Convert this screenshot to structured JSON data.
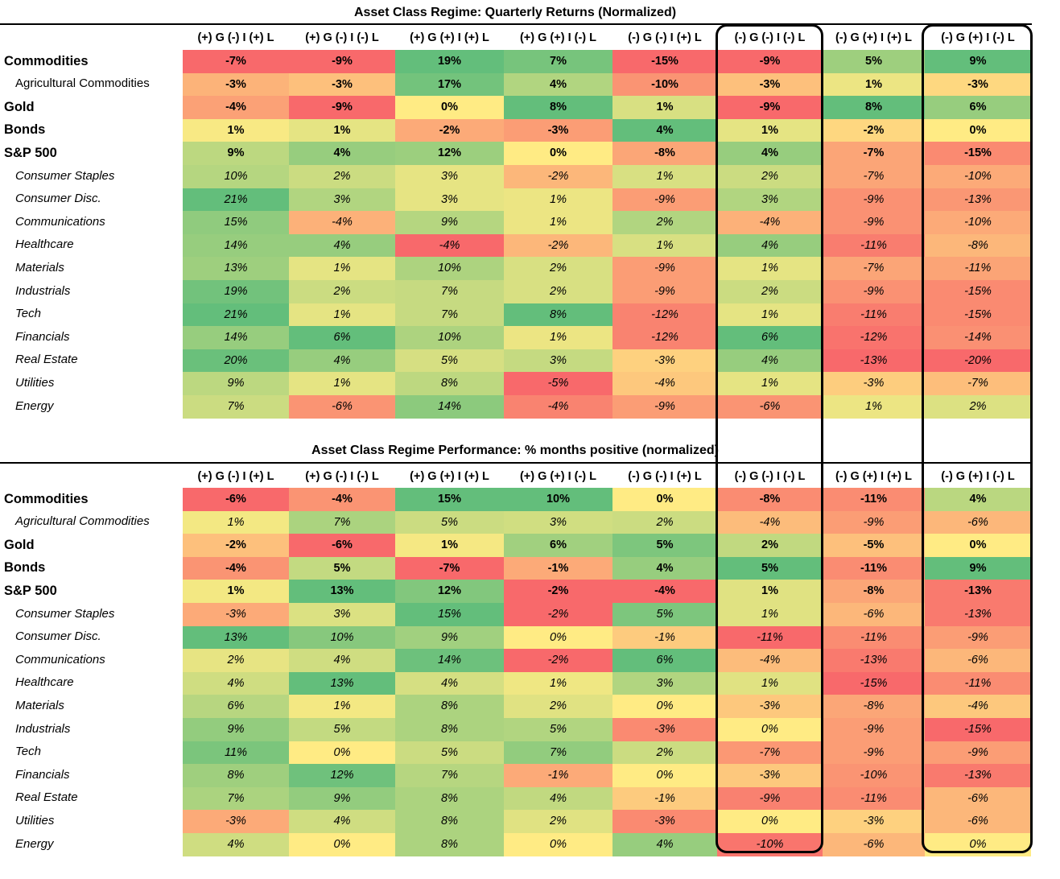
{
  "colors": {
    "green": "#63be7b",
    "yellow": "#ffeb84",
    "red": "#f8696b"
  },
  "chart_data": [
    {
      "type": "heatmap",
      "title": "Asset Class Regime: Quarterly Returns (Normalized)",
      "columns": [
        "(+) G (-) I (+) L",
        "(+) G (-) I (-) L",
        "(+) G (+) I (+) L",
        "(+) G (+) I (-) L",
        "(-) G (-) I (+) L",
        "(-) G (-) I (-) L",
        "(-) G (+) I (+) L",
        "(-) G (+) I (-) L"
      ],
      "rows": [
        {
          "label": "Commodities",
          "style": "main",
          "values": [
            -7,
            -9,
            19,
            7,
            -15,
            -9,
            5,
            9
          ]
        },
        {
          "label": "Agricultural Commodities",
          "style": "sub-plain",
          "values": [
            -3,
            -3,
            17,
            4,
            -10,
            -3,
            1,
            -3
          ]
        },
        {
          "label": "Gold",
          "style": "main",
          "values": [
            -4,
            -9,
            0,
            8,
            1,
            -9,
            8,
            6
          ]
        },
        {
          "label": "Bonds",
          "style": "main",
          "values": [
            1,
            1,
            -2,
            -3,
            4,
            1,
            -2,
            0
          ]
        },
        {
          "label": "S&P 500",
          "style": "main",
          "values": [
            9,
            4,
            12,
            0,
            -8,
            4,
            -7,
            -15
          ]
        },
        {
          "label": "Consumer Staples",
          "style": "sub",
          "values": [
            10,
            2,
            3,
            -2,
            1,
            2,
            -7,
            -10
          ]
        },
        {
          "label": "Consumer Disc.",
          "style": "sub",
          "values": [
            21,
            3,
            3,
            1,
            -9,
            3,
            -9,
            -13
          ]
        },
        {
          "label": "Communications",
          "style": "sub",
          "values": [
            15,
            -4,
            9,
            1,
            2,
            -4,
            -9,
            -10
          ]
        },
        {
          "label": "Healthcare",
          "style": "sub",
          "values": [
            14,
            4,
            -4,
            -2,
            1,
            4,
            -11,
            -8
          ]
        },
        {
          "label": "Materials",
          "style": "sub",
          "values": [
            13,
            1,
            10,
            2,
            -9,
            1,
            -7,
            -11
          ]
        },
        {
          "label": "Industrials",
          "style": "sub",
          "values": [
            19,
            2,
            7,
            2,
            -9,
            2,
            -9,
            -15
          ]
        },
        {
          "label": "Tech",
          "style": "sub",
          "values": [
            21,
            1,
            7,
            8,
            -12,
            1,
            -11,
            -15
          ]
        },
        {
          "label": "Financials",
          "style": "sub",
          "values": [
            14,
            6,
            10,
            1,
            -12,
            6,
            -12,
            -14
          ]
        },
        {
          "label": "Real Estate",
          "style": "sub",
          "values": [
            20,
            4,
            5,
            3,
            -3,
            4,
            -13,
            -20
          ]
        },
        {
          "label": "Utilities",
          "style": "sub",
          "values": [
            9,
            1,
            8,
            -5,
            -4,
            1,
            -3,
            -7
          ]
        },
        {
          "label": "Energy",
          "style": "sub",
          "values": [
            7,
            -6,
            14,
            -4,
            -9,
            -6,
            1,
            2
          ]
        }
      ]
    },
    {
      "type": "heatmap",
      "title": "Asset Class Regime Performance: % months positive (normalized)",
      "columns": [
        "(+) G (-) I (+) L",
        "(+) G (-) I (-) L",
        "(+) G (+) I (+) L",
        "(+) G (+) I (-) L",
        "(-) G (-) I (+) L",
        "(-) G (-) I (-) L",
        "(-) G (+) I (+) L",
        "(-) G (+) I (-) L"
      ],
      "rows": [
        {
          "label": "Commodities",
          "style": "main",
          "values": [
            -6,
            -4,
            15,
            10,
            0,
            -8,
            -11,
            4
          ]
        },
        {
          "label": "Agricultural Commodities",
          "style": "sub",
          "values": [
            1,
            7,
            5,
            3,
            2,
            -4,
            -9,
            -6
          ]
        },
        {
          "label": "Gold",
          "style": "main",
          "values": [
            -2,
            -6,
            1,
            6,
            5,
            2,
            -5,
            0
          ]
        },
        {
          "label": "Bonds",
          "style": "main",
          "values": [
            -4,
            5,
            -7,
            -1,
            4,
            5,
            -11,
            9
          ]
        },
        {
          "label": "S&P 500",
          "style": "main",
          "values": [
            1,
            13,
            12,
            -2,
            -4,
            1,
            -8,
            -13
          ]
        },
        {
          "label": "Consumer Staples",
          "style": "sub",
          "values": [
            -3,
            3,
            15,
            -2,
            5,
            1,
            -6,
            -13
          ]
        },
        {
          "label": "Consumer Disc.",
          "style": "sub",
          "values": [
            13,
            10,
            9,
            0,
            -1,
            -11,
            -11,
            -9
          ]
        },
        {
          "label": "Communications",
          "style": "sub",
          "values": [
            2,
            4,
            14,
            -2,
            6,
            -4,
            -13,
            -6
          ]
        },
        {
          "label": "Healthcare",
          "style": "sub",
          "values": [
            4,
            13,
            4,
            1,
            3,
            1,
            -15,
            -11
          ]
        },
        {
          "label": "Materials",
          "style": "sub",
          "values": [
            6,
            1,
            8,
            2,
            0,
            -3,
            -8,
            -4
          ]
        },
        {
          "label": "Industrials",
          "style": "sub",
          "values": [
            9,
            5,
            8,
            5,
            -3,
            0,
            -9,
            -15
          ]
        },
        {
          "label": "Tech",
          "style": "sub",
          "values": [
            11,
            0,
            5,
            7,
            2,
            -7,
            -9,
            -9
          ]
        },
        {
          "label": "Financials",
          "style": "sub",
          "values": [
            8,
            12,
            7,
            -1,
            0,
            -3,
            -10,
            -13
          ]
        },
        {
          "label": "Real Estate",
          "style": "sub",
          "values": [
            7,
            9,
            8,
            4,
            -1,
            -9,
            -11,
            -6
          ]
        },
        {
          "label": "Utilities",
          "style": "sub",
          "values": [
            -3,
            4,
            8,
            2,
            -3,
            0,
            -3,
            -6
          ]
        },
        {
          "label": "Energy",
          "style": "sub",
          "values": [
            4,
            0,
            8,
            0,
            4,
            -10,
            -6,
            0
          ]
        }
      ]
    }
  ]
}
